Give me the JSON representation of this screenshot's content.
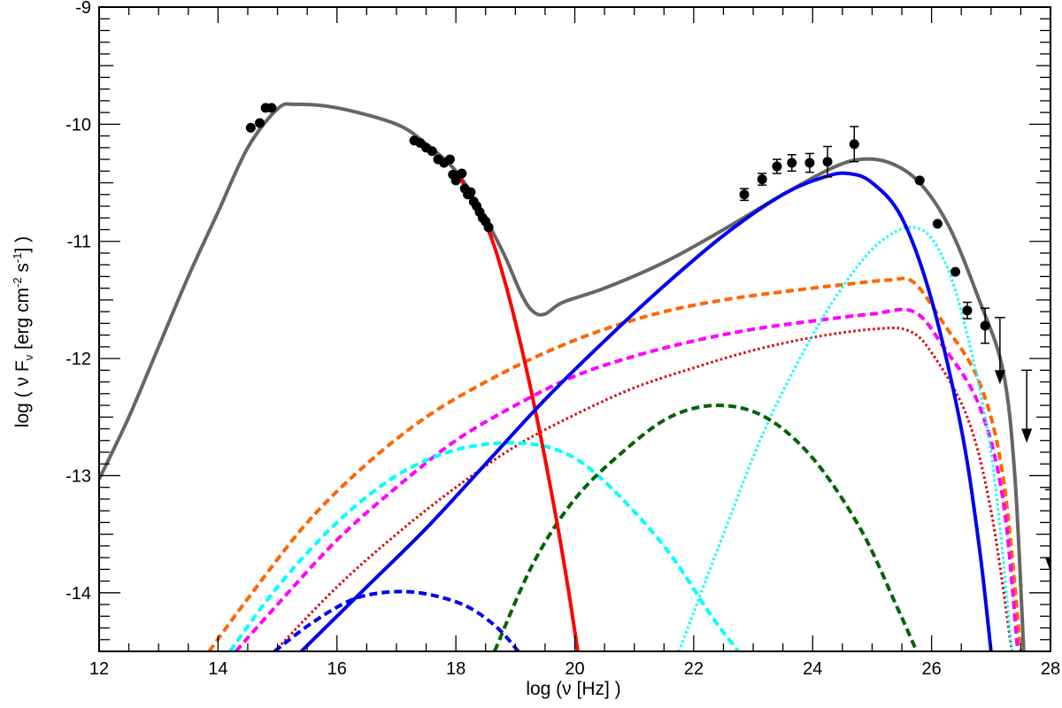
{
  "chart_data": {
    "type": "line",
    "title": "",
    "xlabel": "log (ν [Hz] )",
    "ylabel": {
      "prefix": "log ( ν F",
      "sub": "ν",
      "unit_a": " [erg cm",
      "sup_a": "-2",
      "unit_b": " s",
      "sup_b": "-1",
      "suffix": "] )"
    },
    "xlim": [
      12,
      28
    ],
    "ylim": [
      -14.5,
      -9
    ],
    "x_ticks": [
      12,
      14,
      16,
      18,
      20,
      22,
      24,
      26,
      28
    ],
    "x_tick_labels": [
      "12",
      "14",
      "16",
      "18",
      "20",
      "22",
      "24",
      "26",
      "28"
    ],
    "y_ticks": [
      -14,
      -13,
      -12,
      -11,
      -10,
      -9
    ],
    "y_tick_labels": [
      "-14",
      "-13",
      "-12",
      "-11",
      "-10",
      "-9"
    ],
    "grid": false,
    "series": [
      {
        "color": "#666666",
        "style": "solid",
        "width": 4,
        "x": [
          12.0,
          12.5,
          13.0,
          13.5,
          14.0,
          14.5,
          15.0,
          15.3,
          16.0,
          17.0,
          17.5,
          18.0,
          18.4,
          18.8,
          19.1,
          19.3,
          19.5,
          19.8,
          20.5,
          21.5,
          22.5,
          23.5,
          24.3,
          24.8,
          25.3,
          25.8,
          26.3,
          26.8,
          27.2,
          27.4,
          27.55
        ],
        "y": [
          -13.03,
          -12.5,
          -11.9,
          -11.3,
          -10.75,
          -10.2,
          -9.87,
          -9.83,
          -9.86,
          -10.0,
          -10.17,
          -10.4,
          -10.72,
          -11.1,
          -11.45,
          -11.6,
          -11.62,
          -11.52,
          -11.4,
          -11.18,
          -10.9,
          -10.6,
          -10.38,
          -10.3,
          -10.33,
          -10.5,
          -10.88,
          -11.5,
          -12.1,
          -13.0,
          -14.5
        ]
      },
      {
        "color": "#ff0000",
        "style": "solid",
        "width": 4,
        "x": [
          18.0,
          18.5,
          18.8,
          19.1,
          19.4,
          19.7,
          19.9,
          20.05
        ],
        "y": [
          -10.4,
          -10.85,
          -11.3,
          -11.9,
          -12.6,
          -13.4,
          -14.0,
          -14.5
        ]
      },
      {
        "color": "#0000ee",
        "style": "solid",
        "width": 4,
        "x": [
          15.4,
          16.5,
          17.5,
          18.5,
          19.5,
          20.5,
          21.5,
          22.5,
          23.5,
          24.2,
          24.6,
          25.0,
          25.5,
          26.0,
          26.5,
          26.8,
          27.0
        ],
        "y": [
          -14.5,
          -13.95,
          -13.45,
          -12.9,
          -12.35,
          -11.85,
          -11.38,
          -10.95,
          -10.6,
          -10.45,
          -10.42,
          -10.5,
          -10.8,
          -11.5,
          -12.6,
          -13.6,
          -14.5
        ]
      },
      {
        "color": "#ff6600",
        "style": "dashed",
        "width": 4,
        "x": [
          13.85,
          14.5,
          15.5,
          16.5,
          17.5,
          18.5,
          19.5,
          20.5,
          21.5,
          22.5,
          23.5,
          24.5,
          25.3,
          25.7,
          26.2,
          26.8,
          27.2,
          27.5
        ],
        "y": [
          -14.5,
          -14.05,
          -13.4,
          -12.9,
          -12.5,
          -12.2,
          -11.95,
          -11.75,
          -11.6,
          -11.5,
          -11.43,
          -11.37,
          -11.33,
          -11.35,
          -11.7,
          -12.2,
          -13.0,
          -14.5
        ]
      },
      {
        "color": "#ff00ff",
        "style": "dashed",
        "width": 4,
        "x": [
          14.3,
          15.0,
          16.0,
          17.0,
          18.0,
          19.0,
          20.0,
          21.0,
          22.0,
          23.0,
          24.0,
          25.0,
          25.7,
          26.2,
          26.8,
          27.2,
          27.45
        ],
        "y": [
          -14.5,
          -14.1,
          -13.55,
          -13.1,
          -12.7,
          -12.4,
          -12.15,
          -11.98,
          -11.85,
          -11.75,
          -11.68,
          -11.62,
          -11.6,
          -11.9,
          -12.4,
          -13.2,
          -14.5
        ]
      },
      {
        "color": "#dd0000",
        "style": "dotted",
        "width": 3,
        "x": [
          14.95,
          16.0,
          17.0,
          18.0,
          19.0,
          20.0,
          21.0,
          22.0,
          23.0,
          24.0,
          25.0,
          25.6,
          26.0,
          26.6,
          27.0,
          27.35
        ],
        "y": [
          -14.5,
          -13.95,
          -13.5,
          -13.1,
          -12.75,
          -12.48,
          -12.25,
          -12.08,
          -11.93,
          -11.82,
          -11.75,
          -11.76,
          -11.95,
          -12.5,
          -13.3,
          -14.5
        ]
      },
      {
        "color": "#00ffff",
        "style": "dashed",
        "width": 4,
        "x": [
          14.2,
          15.0,
          16.0,
          17.0,
          18.0,
          19.0,
          19.8,
          20.5,
          21.5,
          22.3,
          22.75
        ],
        "y": [
          -14.5,
          -13.95,
          -13.4,
          -13.0,
          -12.78,
          -12.72,
          -12.8,
          -13.05,
          -13.6,
          -14.2,
          -14.5
        ]
      },
      {
        "color": "#00ffff",
        "style": "dotted",
        "width": 3,
        "x": [
          21.75,
          22.5,
          23.2,
          24.0,
          24.7,
          25.2,
          25.7,
          26.1,
          26.5,
          27.0,
          27.35
        ],
        "y": [
          -14.5,
          -13.5,
          -12.6,
          -11.8,
          -11.25,
          -10.98,
          -10.88,
          -11.05,
          -11.6,
          -12.8,
          -14.5
        ]
      },
      {
        "color": "#0000ee",
        "style": "dashed",
        "width": 4,
        "x": [
          14.95,
          15.6,
          16.3,
          17.0,
          17.6,
          18.2,
          18.7,
          19.05
        ],
        "y": [
          -14.5,
          -14.25,
          -14.05,
          -13.99,
          -14.02,
          -14.12,
          -14.3,
          -14.5
        ]
      },
      {
        "color": "#006400",
        "style": "dashed",
        "width": 4,
        "x": [
          18.65,
          19.3,
          20.0,
          20.8,
          21.6,
          22.4,
          23.2,
          24.0,
          24.8,
          25.4,
          25.75
        ],
        "y": [
          -14.5,
          -13.75,
          -13.2,
          -12.8,
          -12.5,
          -12.4,
          -12.5,
          -12.85,
          -13.45,
          -14.1,
          -14.5
        ]
      }
    ],
    "data_points": {
      "color": "#000000",
      "x": [
        14.55,
        14.7,
        14.8,
        14.9,
        17.3,
        17.4,
        17.5,
        17.6,
        17.7,
        17.8,
        17.9,
        17.95,
        18.0,
        18.1,
        18.15,
        18.2,
        18.25,
        18.3,
        18.35,
        18.4,
        18.45,
        18.5,
        18.55,
        22.85,
        23.15,
        23.4,
        23.65,
        23.95,
        24.25,
        24.7,
        25.8,
        26.1,
        26.4,
        26.6,
        26.9
      ],
      "y": [
        -10.03,
        -9.99,
        -9.86,
        -9.86,
        -10.14,
        -10.16,
        -10.2,
        -10.23,
        -10.3,
        -10.33,
        -10.3,
        -10.43,
        -10.48,
        -10.42,
        -10.55,
        -10.6,
        -10.58,
        -10.66,
        -10.7,
        -10.75,
        -10.8,
        -10.83,
        -10.88,
        -10.6,
        -10.47,
        -10.36,
        -10.33,
        -10.33,
        -10.32,
        -10.17,
        -10.48,
        -10.85,
        -11.26,
        -11.59,
        -11.72
      ],
      "yerr": [
        0,
        0,
        0,
        0,
        0,
        0,
        0,
        0,
        0,
        0,
        0,
        0,
        0,
        0,
        0,
        0,
        0,
        0,
        0,
        0,
        0,
        0,
        0,
        0.05,
        0.05,
        0.06,
        0.07,
        0.08,
        0.13,
        0.15,
        0,
        0,
        0,
        0.07,
        0.15
      ]
    },
    "upper_limits": {
      "x": [
        27.15,
        27.6,
        28.0
      ],
      "y": [
        -11.65,
        -12.1,
        -13.12
      ],
      "arrow_to": [
        -12.22,
        -12.72,
        -13.82
      ]
    }
  }
}
